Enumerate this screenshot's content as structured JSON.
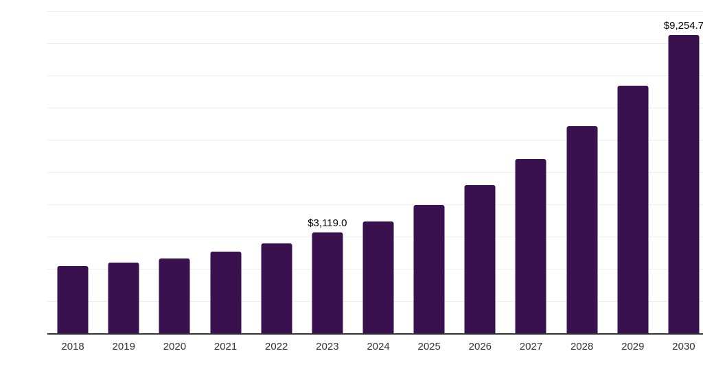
{
  "chart": {
    "background_color": "#ffffff",
    "bar_color": "#39114f",
    "axis_line_color": "#333333",
    "gridline_color": "#ededed",
    "value_label_color": "#000000",
    "tick_label_color": "#333333"
  },
  "chart_data": {
    "type": "bar",
    "title": "",
    "xlabel": "",
    "ylabel": "",
    "categories": [
      "2018",
      "2019",
      "2020",
      "2021",
      "2022",
      "2023",
      "2024",
      "2025",
      "2026",
      "2027",
      "2028",
      "2029",
      "2030"
    ],
    "values": [
      2080,
      2190,
      2315,
      2530,
      2780,
      3119.0,
      3475,
      3970,
      4595,
      5405,
      6430,
      7680,
      9254.7
    ],
    "value_labels": [
      "",
      "",
      "",
      "",
      "",
      "$3,119.0",
      "",
      "",
      "",
      "",
      "",
      "",
      "$9,254.7"
    ],
    "ylim": [
      0,
      10000
    ],
    "grid": true,
    "grid_divisions": 10,
    "legend": false,
    "legend_position": "none"
  }
}
